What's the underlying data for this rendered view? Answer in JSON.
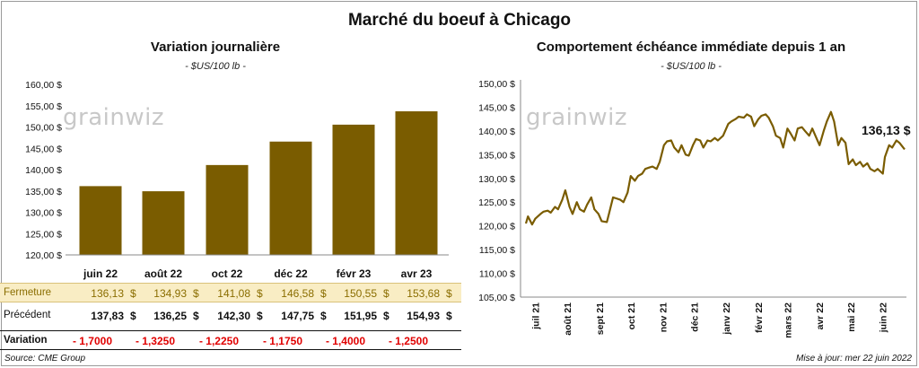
{
  "title": "Marché du boeuf à Chicago",
  "left": {
    "title": "Variation  journalière",
    "unit": "- $US/100 lb -",
    "logo": "grainwiz"
  },
  "right": {
    "title": "Comportement  échéance immédiate depuis 1 an",
    "unit": "- $US/100 lb -",
    "logo": "grainwiz",
    "last_label": "136,13 $"
  },
  "table": {
    "labels": {
      "fermeture": "Fermeture",
      "precedent": "Précédent",
      "variation": "Variation"
    },
    "dollar": "$",
    "fermeture": [
      "136,13",
      "134,93",
      "141,08",
      "146,58",
      "150,55",
      "153,68"
    ],
    "precedent": [
      "137,83",
      "136,25",
      "142,30",
      "147,75",
      "151,95",
      "154,93"
    ],
    "variation": [
      "- 1,7000",
      "- 1,3250",
      "- 1,2250",
      "- 1,1750",
      "- 1,4000",
      "- 1,2500"
    ]
  },
  "footer": {
    "source": "Source: CME Group",
    "update": "Mise à jour: mer 22 juin 2022"
  },
  "chart_data": [
    {
      "type": "bar",
      "title": "Variation  journalière",
      "unit": "- $US/100 lb -",
      "categories": [
        "juin 22",
        "août 22",
        "oct 22",
        "déc 22",
        "févr 23",
        "avr 23"
      ],
      "values": [
        136.13,
        134.93,
        141.08,
        146.58,
        150.55,
        153.68
      ],
      "ylim": [
        120,
        160
      ],
      "yticks": [
        "120,00 $",
        "125,00 $",
        "130,00 $",
        "135,00 $",
        "140,00 $",
        "145,00 $",
        "150,00 $",
        "155,00 $",
        "160,00 $"
      ],
      "bar_color": "#7a5c00",
      "grid": false
    },
    {
      "type": "line",
      "title": "Comportement  échéance immédiate depuis 1 an",
      "unit": "- $US/100 lb -",
      "ylim": [
        105,
        150
      ],
      "yticks": [
        "105,00 $",
        "110,00 $",
        "115,00 $",
        "120,00 $",
        "125,00 $",
        "130,00 $",
        "135,00 $",
        "140,00 $",
        "145,00 $",
        "150,00 $"
      ],
      "xticks": [
        "juil 21",
        "août 21",
        "sept 21",
        "oct 21",
        "nov 21",
        "déc 21",
        "janv 22",
        "févr 22",
        "mars 22",
        "avr 22",
        "mai 22",
        "juin 22"
      ],
      "line_color": "#7a5c00",
      "grid": false,
      "series": [
        {
          "x": [
            "2021-06-22",
            "2021-06-24",
            "2021-06-28",
            "2021-07-01",
            "2021-07-06",
            "2021-07-09",
            "2021-07-13",
            "2021-07-16",
            "2021-07-20",
            "2021-07-23",
            "2021-07-27",
            "2021-07-30",
            "2021-08-03",
            "2021-08-06",
            "2021-08-10",
            "2021-08-13",
            "2021-08-17",
            "2021-08-20",
            "2021-08-24",
            "2021-08-27",
            "2021-08-31",
            "2021-09-03",
            "2021-09-08",
            "2021-09-10",
            "2021-09-14",
            "2021-09-17",
            "2021-09-21",
            "2021-09-24",
            "2021-09-28",
            "2021-10-01",
            "2021-10-05",
            "2021-10-08",
            "2021-10-12",
            "2021-10-15",
            "2021-10-19",
            "2021-10-22",
            "2021-10-26",
            "2021-10-29",
            "2021-11-02",
            "2021-11-05",
            "2021-11-09",
            "2021-11-12",
            "2021-11-16",
            "2021-11-19",
            "2021-11-23",
            "2021-11-26",
            "2021-11-30",
            "2021-12-03",
            "2021-12-07",
            "2021-12-10",
            "2021-12-14",
            "2021-12-17",
            "2021-12-21",
            "2021-12-24",
            "2021-12-29",
            "2022-01-03",
            "2022-01-06",
            "2022-01-10",
            "2022-01-13",
            "2022-01-18",
            "2022-01-21",
            "2022-01-25",
            "2022-01-28",
            "2022-02-01",
            "2022-02-04",
            "2022-02-08",
            "2022-02-11",
            "2022-02-15",
            "2022-02-18",
            "2022-02-22",
            "2022-02-25",
            "2022-03-01",
            "2022-03-04",
            "2022-03-08",
            "2022-03-11",
            "2022-03-15",
            "2022-03-18",
            "2022-03-22",
            "2022-03-25",
            "2022-03-29",
            "2022-04-01",
            "2022-04-05",
            "2022-04-08",
            "2022-04-12",
            "2022-04-15",
            "2022-04-19",
            "2022-04-22",
            "2022-04-26",
            "2022-04-29",
            "2022-05-03",
            "2022-05-06",
            "2022-05-10",
            "2022-05-13",
            "2022-05-17",
            "2022-05-20",
            "2022-05-24",
            "2022-05-27",
            "2022-06-01",
            "2022-06-03",
            "2022-06-07",
            "2022-06-10",
            "2022-06-14",
            "2022-06-17",
            "2022-06-22"
          ],
          "y": [
            120.5,
            122.0,
            120.3,
            121.5,
            122.5,
            123.0,
            123.2,
            122.8,
            124.0,
            123.5,
            125.5,
            127.5,
            124.0,
            122.5,
            125.0,
            123.5,
            123.0,
            124.5,
            126.0,
            123.5,
            122.5,
            121.0,
            120.8,
            122.5,
            126.0,
            125.8,
            125.5,
            125.0,
            127.0,
            130.5,
            129.5,
            130.5,
            131.0,
            132.0,
            132.3,
            132.5,
            132.0,
            133.5,
            137.0,
            137.8,
            138.0,
            136.5,
            135.5,
            137.0,
            135.0,
            134.8,
            137.0,
            138.3,
            138.0,
            136.5,
            138.0,
            137.8,
            138.5,
            138.0,
            139.0,
            141.5,
            142.0,
            142.5,
            143.0,
            142.8,
            143.5,
            143.0,
            141.0,
            142.5,
            143.2,
            143.5,
            142.8,
            141.0,
            139.0,
            138.5,
            136.5,
            140.5,
            139.5,
            138.0,
            140.5,
            140.8,
            140.0,
            139.0,
            140.5,
            138.5,
            137.0,
            140.0,
            142.0,
            144.0,
            142.0,
            137.0,
            138.5,
            137.5,
            133.0,
            134.0,
            132.8,
            133.5,
            132.5,
            133.2,
            132.0,
            131.5,
            132.0,
            131.0,
            134.5,
            137.0,
            136.5,
            138.0,
            137.5,
            136.13
          ]
        }
      ]
    }
  ]
}
